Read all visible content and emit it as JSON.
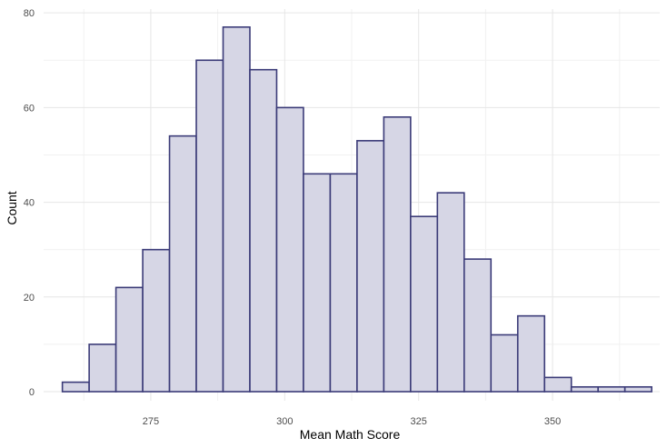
{
  "chart_data": {
    "type": "bar",
    "subtype": "histogram",
    "xlabel": "Mean Math Score",
    "ylabel": "Count",
    "xlim": [
      255,
      370
    ],
    "ylim": [
      0,
      80
    ],
    "x_ticks": [
      275,
      300,
      325,
      350
    ],
    "y_ticks": [
      0,
      20,
      40,
      60,
      80
    ],
    "grid": true,
    "legend": "none",
    "colors": {
      "bar_fill": "#d6d6e5",
      "bar_outline": "#3b3b78",
      "grid": "#e6e6e6"
    },
    "bins": [
      {
        "x_start": 258.5,
        "x_end": 263.5,
        "count": 2
      },
      {
        "x_start": 263.5,
        "x_end": 268.5,
        "count": 10
      },
      {
        "x_start": 268.5,
        "x_end": 273.5,
        "count": 22
      },
      {
        "x_start": 273.5,
        "x_end": 278.5,
        "count": 30
      },
      {
        "x_start": 278.5,
        "x_end": 283.5,
        "count": 54
      },
      {
        "x_start": 283.5,
        "x_end": 288.5,
        "count": 70
      },
      {
        "x_start": 288.5,
        "x_end": 293.5,
        "count": 77
      },
      {
        "x_start": 293.5,
        "x_end": 298.5,
        "count": 68
      },
      {
        "x_start": 298.5,
        "x_end": 303.5,
        "count": 60
      },
      {
        "x_start": 303.5,
        "x_end": 308.5,
        "count": 46
      },
      {
        "x_start": 308.5,
        "x_end": 313.5,
        "count": 46
      },
      {
        "x_start": 313.5,
        "x_end": 318.5,
        "count": 53
      },
      {
        "x_start": 318.5,
        "x_end": 323.5,
        "count": 58
      },
      {
        "x_start": 323.5,
        "x_end": 328.5,
        "count": 37
      },
      {
        "x_start": 328.5,
        "x_end": 333.5,
        "count": 42
      },
      {
        "x_start": 333.5,
        "x_end": 338.5,
        "count": 28
      },
      {
        "x_start": 338.5,
        "x_end": 343.5,
        "count": 12
      },
      {
        "x_start": 343.5,
        "x_end": 348.5,
        "count": 16
      },
      {
        "x_start": 348.5,
        "x_end": 353.5,
        "count": 3
      },
      {
        "x_start": 353.5,
        "x_end": 358.5,
        "count": 1
      },
      {
        "x_start": 358.5,
        "x_end": 363.5,
        "count": 1
      },
      {
        "x_start": 363.5,
        "x_end": 368.5,
        "count": 1
      }
    ]
  }
}
